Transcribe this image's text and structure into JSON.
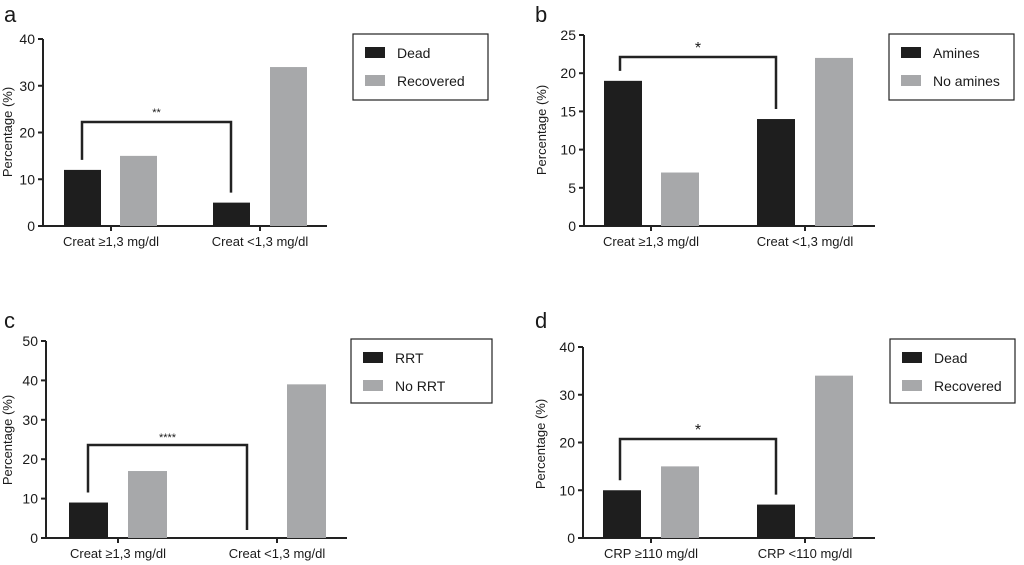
{
  "colors": {
    "dark": "#1e1e1e",
    "light": "#a7a8aa",
    "axis": "#222222"
  },
  "chart_data": [
    {
      "panel": "a",
      "type": "bar",
      "ylabel": "Percentage (%)",
      "ylim": [
        0,
        40
      ],
      "yticks": [
        "0",
        "10",
        "20",
        "30",
        "40"
      ],
      "categories": [
        "Creat ≥1,3 mg/dl",
        "Creat <1,3 mg/dl"
      ],
      "series": [
        {
          "name": "Dead",
          "values": [
            12,
            5
          ]
        },
        {
          "name": "Recovered",
          "values": [
            15,
            34
          ]
        }
      ],
      "significance": "**",
      "legend_position": "top-right"
    },
    {
      "panel": "b",
      "type": "bar",
      "ylabel": "Percentage (%)",
      "ylim": [
        0,
        25
      ],
      "yticks": [
        "0",
        "5",
        "10",
        "15",
        "20",
        "25"
      ],
      "categories": [
        "Creat ≥1,3 mg/dl",
        "Creat <1,3 mg/dl"
      ],
      "series": [
        {
          "name": "Amines",
          "values": [
            19,
            14
          ]
        },
        {
          "name": "No amines",
          "values": [
            7,
            22
          ]
        }
      ],
      "significance": "*",
      "legend_position": "top-right"
    },
    {
      "panel": "c",
      "type": "bar",
      "ylabel": "Percentage (%)",
      "ylim": [
        0,
        50
      ],
      "yticks": [
        "0",
        "10",
        "20",
        "30",
        "40",
        "50"
      ],
      "categories": [
        "Creat ≥1,3 mg/dl",
        "Creat <1,3 mg/dl"
      ],
      "series": [
        {
          "name": "RRT",
          "values": [
            9,
            0
          ]
        },
        {
          "name": "No RRT",
          "values": [
            17,
            39
          ]
        }
      ],
      "significance": "****",
      "legend_position": "top-right"
    },
    {
      "panel": "d",
      "type": "bar",
      "ylabel": "Percentage (%)",
      "ylim": [
        0,
        40
      ],
      "yticks": [
        "0",
        "10",
        "20",
        "30",
        "40"
      ],
      "categories": [
        "CRP ≥110 mg/dl",
        "CRP <110 mg/dl"
      ],
      "series": [
        {
          "name": "Dead",
          "values": [
            10,
            7
          ]
        },
        {
          "name": "Recovered",
          "values": [
            15,
            34
          ]
        }
      ],
      "significance": "*",
      "legend_position": "top-right"
    }
  ]
}
